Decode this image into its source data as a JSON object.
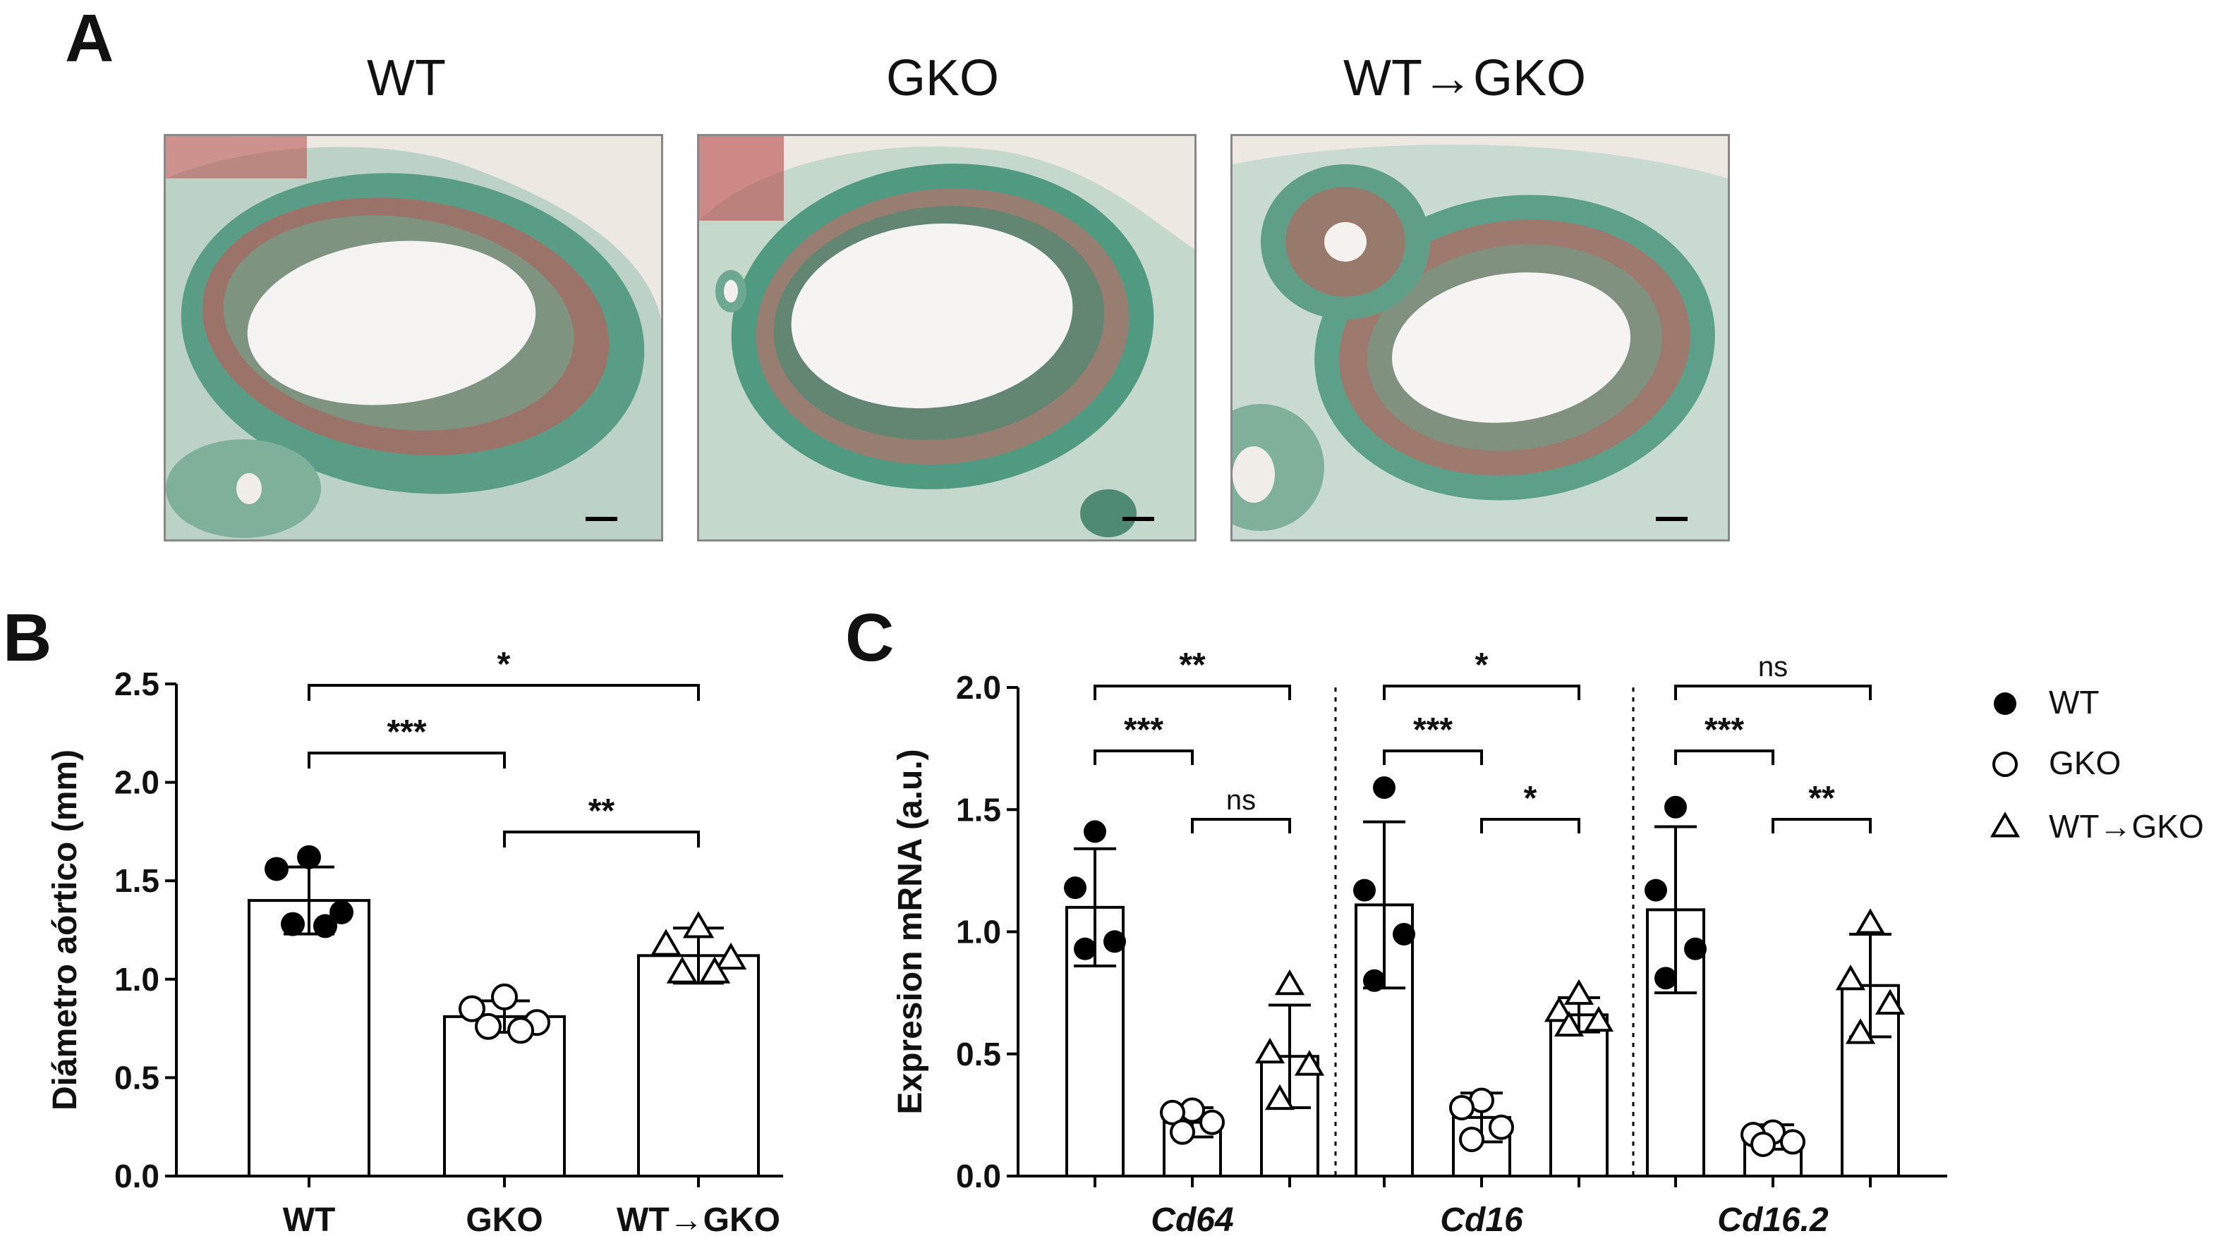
{
  "panels": {
    "A": "A",
    "B": "B",
    "C": "C"
  },
  "panel_a": {
    "images": [
      {
        "title": "WT"
      },
      {
        "title": "GKO"
      },
      {
        "title": "WT→GKO"
      }
    ]
  },
  "chart_data": [
    {
      "panel": "B",
      "type": "bar",
      "ylabel": "Diámetro aórtico (mm)",
      "ylim": [
        0,
        2.5
      ],
      "yticks": [
        "0.0",
        "0.5",
        "1.0",
        "1.5",
        "2.0",
        "2.5"
      ],
      "categories": [
        "WT",
        "GKO",
        "WT→GKO"
      ],
      "values": [
        1.4,
        0.81,
        1.12
      ],
      "sd": [
        0.17,
        0.08,
        0.14
      ],
      "points": [
        [
          1.62,
          1.56,
          1.34,
          1.28,
          1.27
        ],
        [
          0.91,
          0.85,
          0.78,
          0.76,
          0.74
        ],
        [
          1.26,
          1.17,
          1.1,
          1.03,
          1.03
        ]
      ],
      "markers": [
        "filled-circle",
        "open-circle",
        "open-triangle"
      ],
      "significance": [
        {
          "from": 0,
          "to": 1,
          "label": "***"
        },
        {
          "from": 1,
          "to": 2,
          "label": "**"
        },
        {
          "from": 0,
          "to": 2,
          "label": "*"
        }
      ]
    },
    {
      "panel": "C",
      "type": "bar",
      "ylabel": "Expresion mRNA (a.u.)",
      "ylim": [
        0,
        2.0
      ],
      "yticks": [
        "0.0",
        "0.5",
        "1.0",
        "1.5",
        "2.0"
      ],
      "groups": [
        "Cd64",
        "Cd16",
        "Cd16.2"
      ],
      "series": [
        {
          "name": "WT",
          "marker": "filled-circle",
          "values": [
            1.1,
            1.11,
            1.09
          ],
          "sd": [
            0.24,
            0.34,
            0.34
          ],
          "points": [
            [
              1.41,
              1.18,
              0.96,
              0.93
            ],
            [
              1.59,
              1.17,
              0.99,
              0.8
            ],
            [
              1.51,
              1.17,
              0.93,
              0.81
            ]
          ]
        },
        {
          "name": "GKO",
          "marker": "open-circle",
          "values": [
            0.22,
            0.24,
            0.16
          ],
          "sd": [
            0.06,
            0.1,
            0.05
          ],
          "points": [
            [
              0.27,
              0.26,
              0.22,
              0.18
            ],
            [
              0.31,
              0.28,
              0.2,
              0.15
            ],
            [
              0.18,
              0.17,
              0.14,
              0.13
            ]
          ]
        },
        {
          "name": "WT→GKO",
          "marker": "open-triangle",
          "values": [
            0.49,
            0.66,
            0.78
          ],
          "sd": [
            0.21,
            0.07,
            0.21
          ],
          "points": [
            [
              0.78,
              0.5,
              0.45,
              0.31
            ],
            [
              0.74,
              0.67,
              0.63,
              0.61
            ],
            [
              1.03,
              0.8,
              0.7,
              0.58
            ]
          ]
        }
      ],
      "significance": [
        [
          {
            "from": 0,
            "to": 1,
            "label": "***"
          },
          {
            "from": 1,
            "to": 2,
            "label": "ns"
          },
          {
            "from": 0,
            "to": 2,
            "label": "**"
          }
        ],
        [
          {
            "from": 0,
            "to": 1,
            "label": "***"
          },
          {
            "from": 1,
            "to": 2,
            "label": "*"
          },
          {
            "from": 0,
            "to": 2,
            "label": "*"
          }
        ],
        [
          {
            "from": 0,
            "to": 1,
            "label": "***"
          },
          {
            "from": 1,
            "to": 2,
            "label": "**"
          },
          {
            "from": 0,
            "to": 2,
            "label": "ns"
          }
        ]
      ],
      "legend": {
        "position": "right",
        "items": [
          "WT",
          "GKO",
          "WT→GKO"
        ]
      }
    }
  ]
}
